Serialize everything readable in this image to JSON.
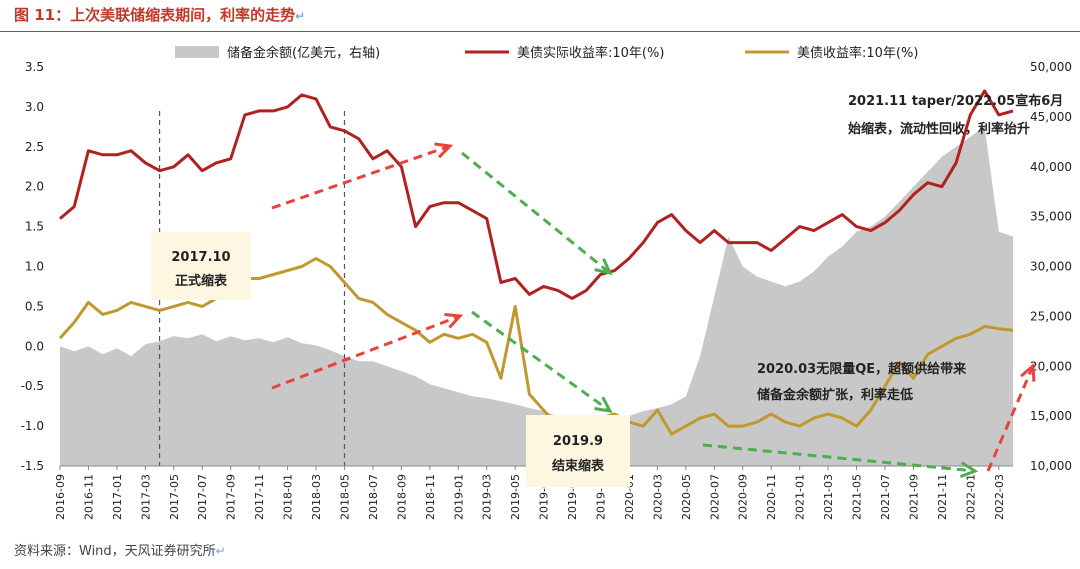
{
  "page_title": "图 11：上次美联储缩表期间，利率的走势",
  "return_mark": "↵",
  "source_text": "资料来源：Wind，天风证券研究所",
  "colors": {
    "reserves": "#c8c8c8",
    "real_yield": "#b0211f",
    "nominal_yield": "#c1982e",
    "arrow_red": "#e8433a",
    "arrow_green": "#4cae4c",
    "annotation_box": "#fdf6e0"
  },
  "chart_data": {
    "type": "area+line",
    "legend_position": "top",
    "grid": false,
    "x_start": "2016-09",
    "x_ticks": [
      "2016-09",
      "2016-11",
      "2017-01",
      "2017-03",
      "2017-05",
      "2017-07",
      "2017-09",
      "2017-11",
      "2018-01",
      "2018-03",
      "2018-05",
      "2018-07",
      "2018-09",
      "2018-11",
      "2019-01",
      "2019-03",
      "2019-05",
      "2019-07",
      "2019-09",
      "2019-11",
      "2020-01",
      "2020-03",
      "2020-05",
      "2020-07",
      "2020-09",
      "2020-11",
      "2021-01",
      "2021-03",
      "2021-05",
      "2021-07",
      "2021-09",
      "2021-11",
      "2022-01",
      "2022-03"
    ],
    "y_left": {
      "min": -1.5,
      "max": 3.5,
      "ticks": [
        "3.5",
        "3.0",
        "2.5",
        "2.0",
        "1.5",
        "1.0",
        "0.5",
        "0.0",
        "-0.5",
        "-1.0",
        "-1.5"
      ]
    },
    "y_right": {
      "min": 10000,
      "max": 50000,
      "ticks": [
        "50,000",
        "45,000",
        "40,000",
        "35,000",
        "30,000",
        "25,000",
        "20,000",
        "15,000",
        "10,000"
      ]
    },
    "series": [
      {
        "name": "储备金余额(亿美元，右轴)",
        "type": "area",
        "axis": "right",
        "color": "#c8c8c8",
        "x": [
          0,
          1,
          2,
          3,
          4,
          5,
          6,
          7,
          8,
          9,
          10,
          11,
          12,
          13,
          14,
          15,
          16,
          17,
          18,
          19,
          20,
          21,
          22,
          23,
          24,
          25,
          26,
          27,
          28,
          29,
          30,
          31,
          32,
          33,
          34,
          35,
          36,
          37,
          38,
          39,
          40,
          41,
          42,
          43,
          44,
          45,
          46,
          47,
          48,
          49,
          50,
          51,
          52,
          53,
          54,
          55,
          56,
          57,
          58,
          59,
          60,
          61,
          62,
          63,
          64,
          65,
          66,
          67
        ],
        "values": [
          22000,
          21500,
          22000,
          21200,
          21800,
          21000,
          22200,
          22500,
          23000,
          22800,
          23200,
          22500,
          23000,
          22600,
          22800,
          22400,
          22900,
          22300,
          22100,
          21600,
          21000,
          20500,
          20500,
          20000,
          19500,
          19000,
          18200,
          17800,
          17400,
          17000,
          16800,
          16500,
          16200,
          15800,
          15500,
          15000,
          14400,
          14000,
          14300,
          14600,
          15000,
          15500,
          15800,
          16200,
          17000,
          21000,
          27000,
          33000,
          30000,
          29000,
          28500,
          28000,
          28500,
          29500,
          31000,
          32000,
          33500,
          34000,
          35000,
          36500,
          38000,
          39500,
          41000,
          42000,
          43000,
          44000,
          33500,
          33000
        ]
      },
      {
        "name": "美债实际收益率:10年(%)",
        "type": "line",
        "axis": "left",
        "color": "#b0211f",
        "x": [
          0,
          1,
          2,
          3,
          4,
          5,
          6,
          7,
          8,
          9,
          10,
          11,
          12,
          13,
          14,
          15,
          16,
          17,
          18,
          19,
          20,
          21,
          22,
          23,
          24,
          25,
          26,
          27,
          28,
          29,
          30,
          31,
          32,
          33,
          34,
          35,
          36,
          37,
          38,
          39,
          40,
          41,
          42,
          43,
          44,
          45,
          46,
          47,
          48,
          49,
          50,
          51,
          52,
          53,
          54,
          55,
          56,
          57,
          58,
          59,
          60,
          61,
          62,
          63,
          64,
          65,
          66,
          67
        ],
        "values": [
          1.6,
          1.75,
          2.45,
          2.4,
          2.4,
          2.45,
          2.3,
          2.2,
          2.25,
          2.4,
          2.2,
          2.3,
          2.35,
          2.9,
          2.95,
          2.95,
          3.0,
          3.15,
          3.1,
          2.75,
          2.7,
          2.6,
          2.35,
          2.45,
          2.25,
          1.5,
          1.75,
          1.8,
          1.8,
          1.7,
          1.6,
          0.8,
          0.85,
          0.65,
          0.75,
          0.7,
          0.6,
          0.7,
          0.9,
          0.95,
          1.1,
          1.3,
          1.55,
          1.65,
          1.45,
          1.3,
          1.45,
          1.3,
          1.3,
          1.3,
          1.2,
          1.35,
          1.5,
          1.45,
          1.55,
          1.65,
          1.5,
          1.45,
          1.55,
          1.7,
          1.9,
          2.05,
          2.0,
          2.3,
          2.9,
          3.2,
          2.9,
          2.95
        ]
      },
      {
        "name": "美债收益率:10年(%)",
        "type": "line",
        "axis": "left",
        "color": "#c1982e",
        "x": [
          0,
          1,
          2,
          3,
          4,
          5,
          6,
          7,
          8,
          9,
          10,
          11,
          12,
          13,
          14,
          15,
          16,
          17,
          18,
          19,
          20,
          21,
          22,
          23,
          24,
          25,
          26,
          27,
          28,
          29,
          30,
          31,
          32,
          33,
          34,
          35,
          36,
          37,
          38,
          39,
          40,
          41,
          42,
          43,
          44,
          45,
          46,
          47,
          48,
          49,
          50,
          51,
          52,
          53,
          54,
          55,
          56,
          57,
          58,
          59,
          60,
          61,
          62,
          63,
          64,
          65,
          66,
          67
        ],
        "values": [
          0.1,
          0.3,
          0.55,
          0.4,
          0.45,
          0.55,
          0.5,
          0.45,
          0.5,
          0.55,
          0.5,
          0.6,
          0.7,
          0.85,
          0.85,
          0.9,
          0.95,
          1.0,
          1.1,
          1.0,
          0.8,
          0.6,
          0.55,
          0.4,
          0.3,
          0.2,
          0.05,
          0.15,
          0.1,
          0.15,
          0.05,
          -0.4,
          0.5,
          -0.6,
          -0.8,
          -1.0,
          -1.05,
          -0.95,
          -0.9,
          -0.85,
          -0.95,
          -1.0,
          -0.8,
          -1.1,
          -1.0,
          -0.9,
          -0.85,
          -1.0,
          -1.0,
          -0.95,
          -0.85,
          -0.95,
          -1.0,
          -0.9,
          -0.85,
          -0.9,
          -1.0,
          -0.8,
          -0.5,
          -0.2,
          -0.4,
          -0.1,
          0.0,
          0.1,
          0.15,
          0.25,
          0.22,
          0.2
        ]
      }
    ],
    "vlines": [
      {
        "x": 7
      },
      {
        "x": 20
      }
    ],
    "annotations": [
      {
        "lines": [
          "2017.10",
          "正式缩表"
        ],
        "style": "box"
      },
      {
        "lines": [
          "2019.9",
          "结束缩表"
        ],
        "style": "box"
      },
      {
        "lines": [
          "2021.11 taper/2022.05宣布6月",
          "始缩表，流动性回收，利率抬升"
        ],
        "style": "plain"
      },
      {
        "lines": [
          "2020.03无限量QE，超额供给带来",
          "储备金余额扩张，利率走低"
        ],
        "style": "plain"
      }
    ]
  }
}
